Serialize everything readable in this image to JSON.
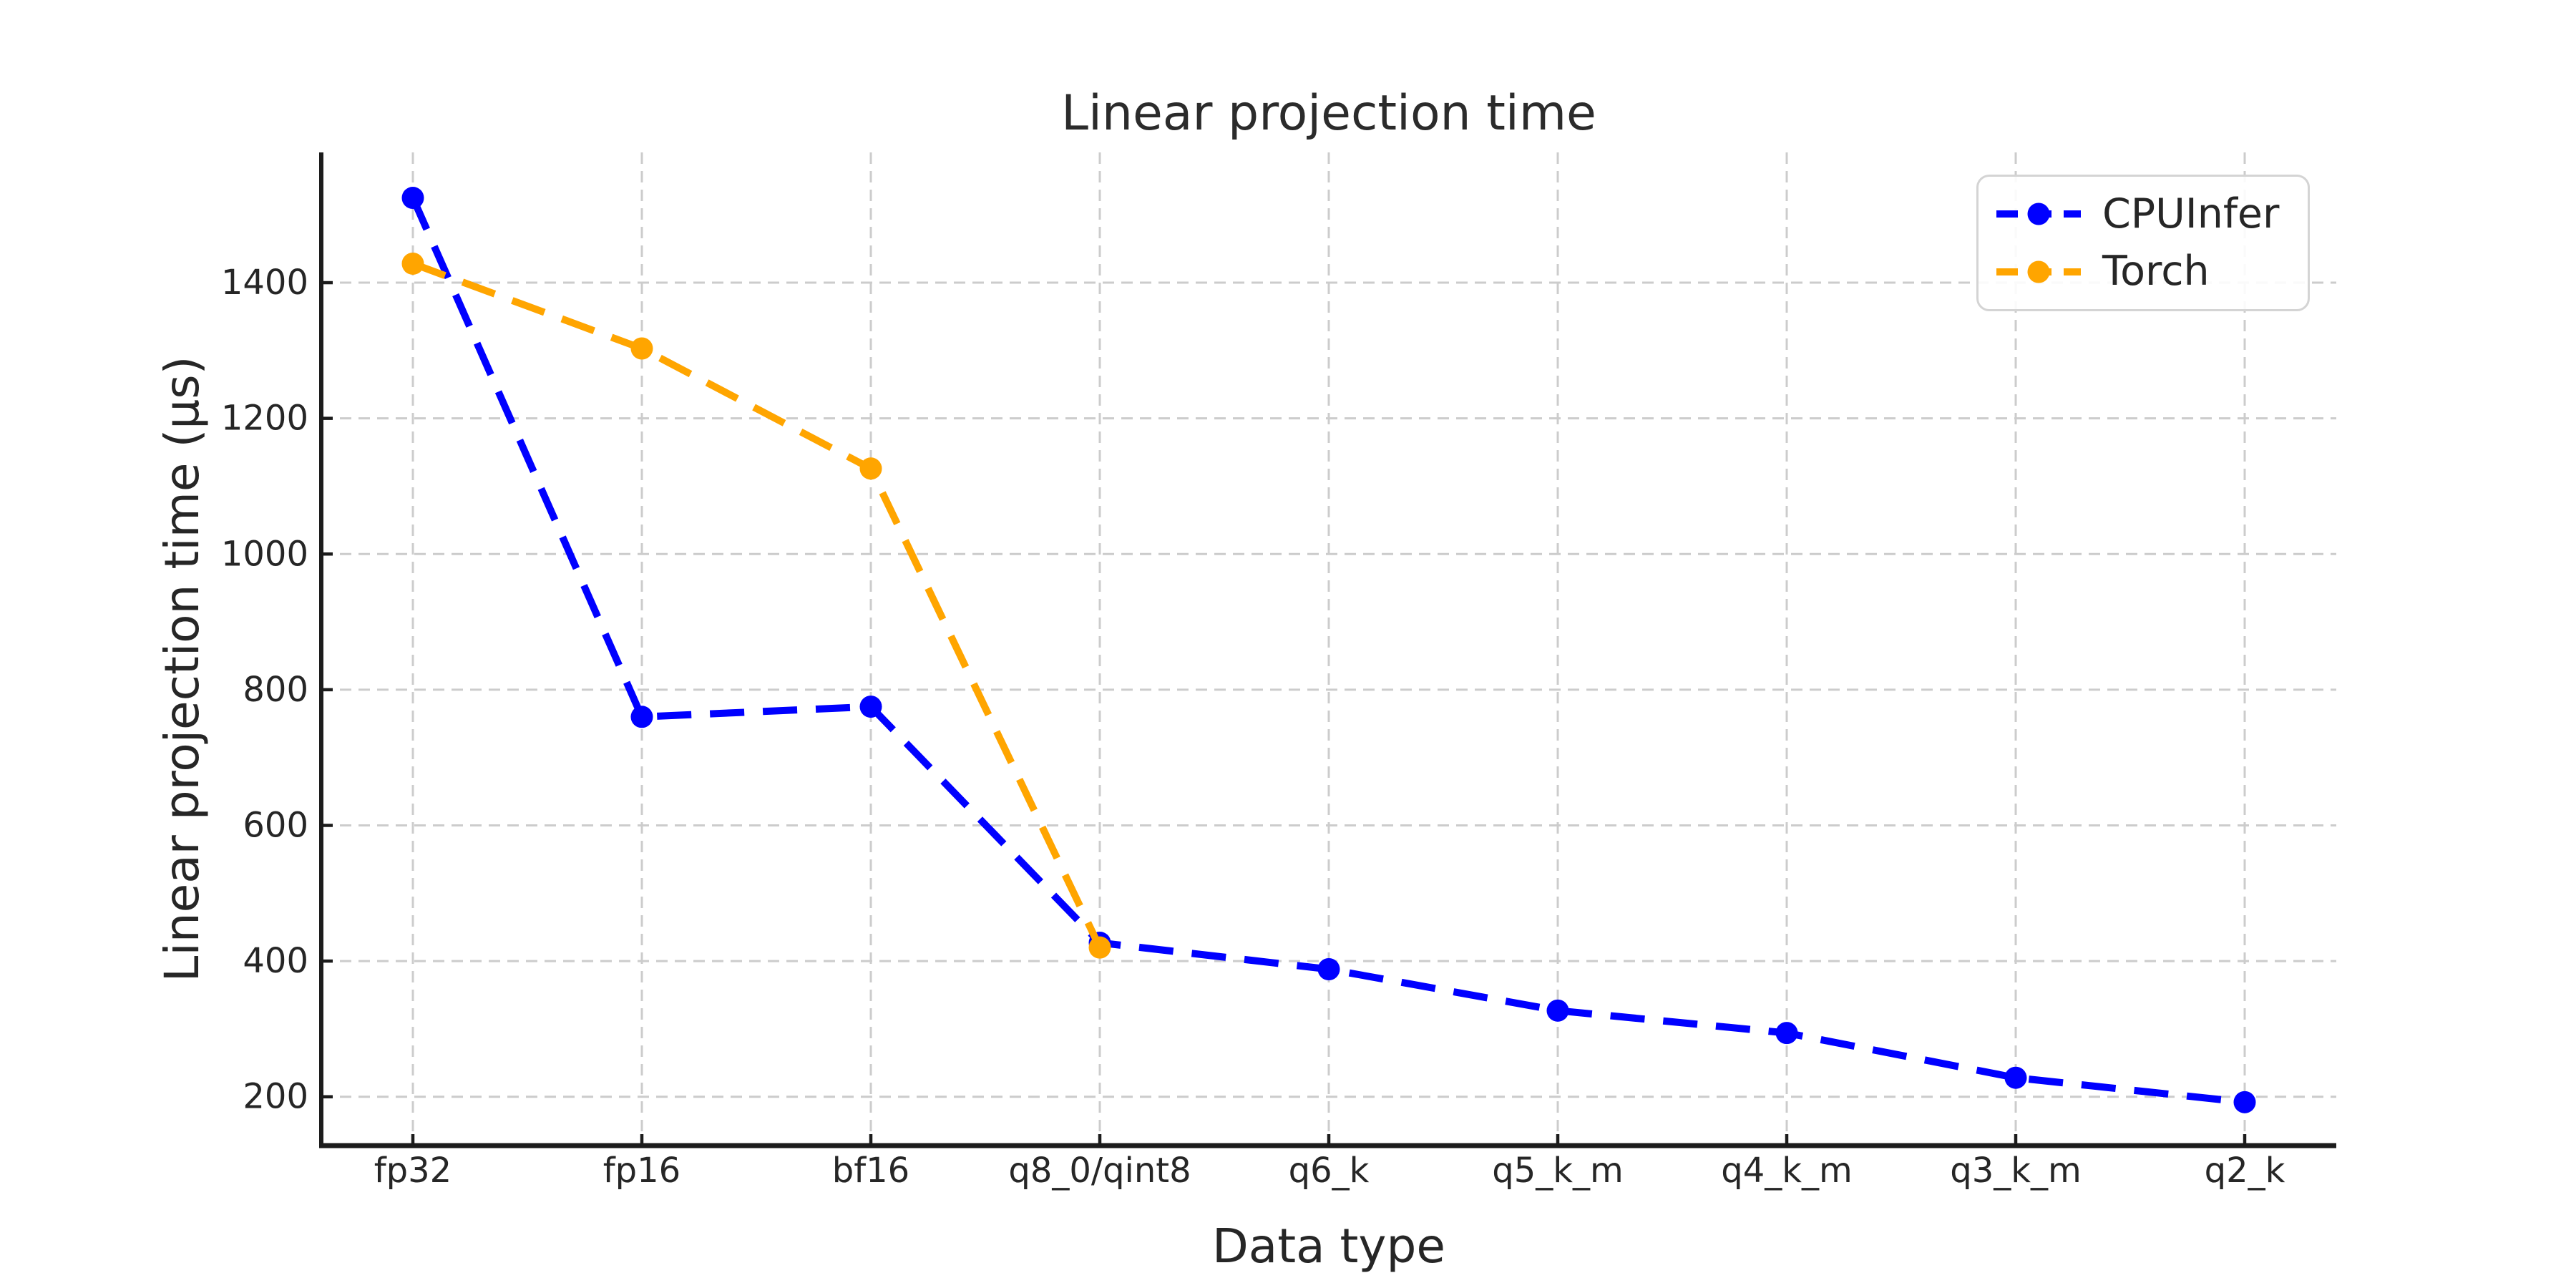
{
  "figure": {
    "background": "#ffffff"
  },
  "chart_data": {
    "type": "line",
    "title": "Linear projection time",
    "xlabel": "Data type",
    "ylabel": "Linear projection time (μs)",
    "categories": [
      "fp32",
      "fp16",
      "bf16",
      "q8_0/qint8",
      "q6_k",
      "q5_k_m",
      "q4_k_m",
      "q3_k_m",
      "q2_k"
    ],
    "series": [
      {
        "name": "CPUInfer",
        "color": "#0000ff",
        "linestyle": "dashed",
        "marker": "circle",
        "values": [
          1525,
          760,
          775,
          427,
          388,
          327,
          294,
          228,
          192
        ]
      },
      {
        "name": "Torch",
        "color": "#ffa500",
        "linestyle": "dashed",
        "marker": "circle",
        "values": [
          1428,
          1303,
          1126,
          420,
          null,
          null,
          null,
          null,
          null
        ]
      }
    ],
    "yticks": [
      200,
      400,
      600,
      800,
      1000,
      1200,
      1400
    ],
    "ylim": [
      128,
      1592
    ],
    "grid": true,
    "grid_color": "#cccccc",
    "spine_color": "#1c1c1c",
    "text_color": "#262626",
    "legend_position": "upper right"
  },
  "legend": {
    "items": [
      {
        "label": "CPUInfer",
        "color": "#0000ff"
      },
      {
        "label": "Torch",
        "color": "#ffa500"
      }
    ]
  }
}
